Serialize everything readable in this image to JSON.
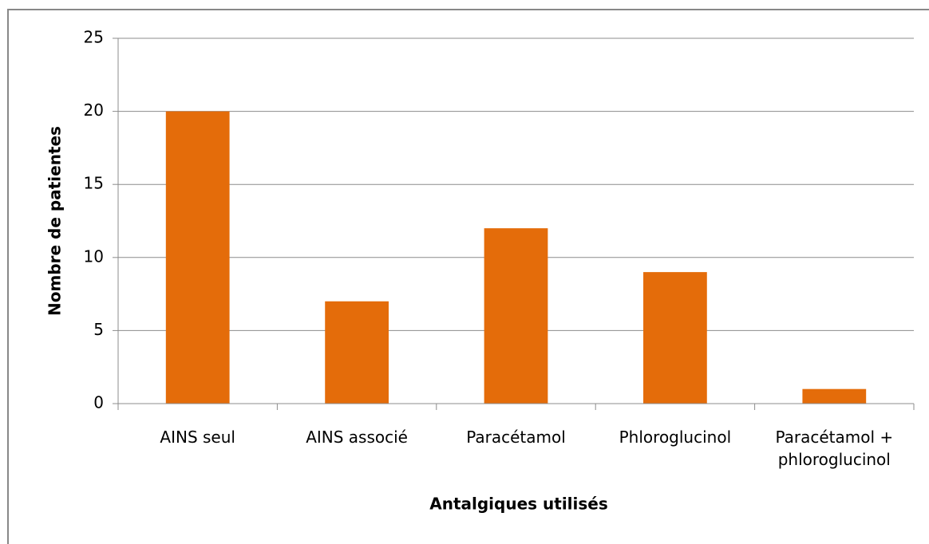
{
  "chart_data": {
    "type": "bar",
    "x_label": "Antalgiques utilisés",
    "y_label": "Nombre de patientes",
    "categories": [
      "AINS seul",
      "AINS associé",
      "Paracétamol",
      "Phloroglucinol",
      "Paracétamol + phloroglucinol"
    ],
    "values": [
      20,
      7,
      12,
      9,
      1
    ],
    "color": "#e46c0a",
    "ylim": [
      0,
      25
    ],
    "yticks": [
      0,
      5,
      10,
      15,
      20,
      25
    ],
    "grid": true
  }
}
